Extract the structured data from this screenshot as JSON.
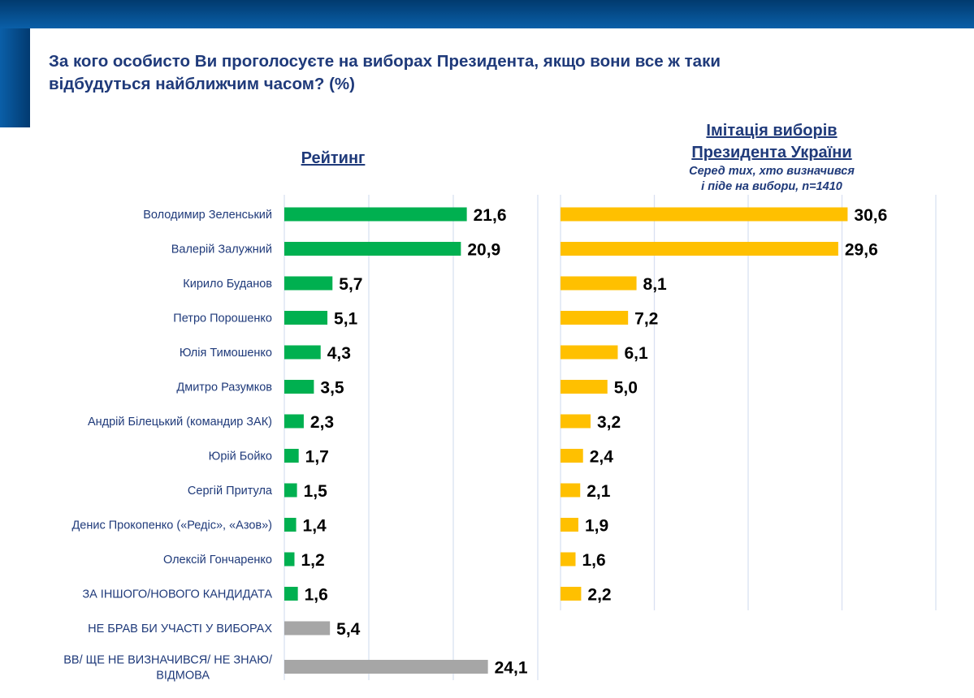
{
  "title": "За кого особисто Ви проголосуєте на виборах Президента, якщо вони все ж таки відбудуться найближчим часом? (%)",
  "colors": {
    "header": "#0a5fa8",
    "title": "#1f3a7a",
    "green": "#00b050",
    "yellow": "#ffc000",
    "gray": "#a6a6a6",
    "grid": "#d9e1f2"
  },
  "chart_data": [
    {
      "type": "bar",
      "orientation": "horizontal",
      "title": "Рейтинг",
      "xlim": [
        0,
        30
      ],
      "grid": true,
      "categories": [
        "Володимир Зеленський",
        "Валерій Залужний",
        "Кирило Буданов",
        "Петро Порошенко",
        "Юлія Тимошенко",
        "Дмитро Разумков",
        "Андрій Білецький (командир ЗАК)",
        "Юрій Бойко",
        "Сергій Притула",
        "Денис Прокопенко («Редіс», «Азов»)",
        "Олексій Гончаренко",
        "ЗА ІНШОГО/НОВОГО КАНДИДАТА",
        "НЕ БРАВ БИ УЧАСТІ У ВИБОРАХ",
        "ВВ/ ЩЕ НЕ ВИЗНАЧИВСЯ/ НЕ ЗНАЮ/ ВІДМОВА"
      ],
      "values": [
        21.6,
        20.9,
        5.7,
        5.1,
        4.3,
        3.5,
        2.3,
        1.7,
        1.5,
        1.4,
        1.2,
        1.6,
        5.4,
        24.1
      ],
      "labels": [
        "21,6",
        "20,9",
        "5,7",
        "5,1",
        "4,3",
        "3,5",
        "2,3",
        "1,7",
        "1,5",
        "1,4",
        "1,2",
        "1,6",
        "5,4",
        "24,1"
      ],
      "bar_colors": [
        "green",
        "green",
        "green",
        "green",
        "green",
        "green",
        "green",
        "green",
        "green",
        "green",
        "green",
        "green",
        "gray",
        "gray"
      ]
    },
    {
      "type": "bar",
      "orientation": "horizontal",
      "title": "Імітація виборів Президента України",
      "subtitle": "Серед тих, хто визначився і піде на вибори, n=1410",
      "xlim": [
        0,
        40
      ],
      "grid": true,
      "values": [
        30.6,
        29.6,
        8.1,
        7.2,
        6.1,
        5.0,
        3.2,
        2.4,
        2.1,
        1.9,
        1.6,
        2.2
      ],
      "labels": [
        "30,6",
        "29,6",
        "8,1",
        "7,2",
        "6,1",
        "5,0",
        "3,2",
        "2,4",
        "2,1",
        "1,9",
        "1,6",
        "2,2"
      ],
      "bar_color": "yellow"
    }
  ],
  "headers": {
    "left": "Рейтинг",
    "right_line1": "Імітація виборів",
    "right_line2": "Президента України",
    "right_sub1": "Серед тих, хто визначився",
    "right_sub2": "і піде на вибори, n=1410"
  }
}
